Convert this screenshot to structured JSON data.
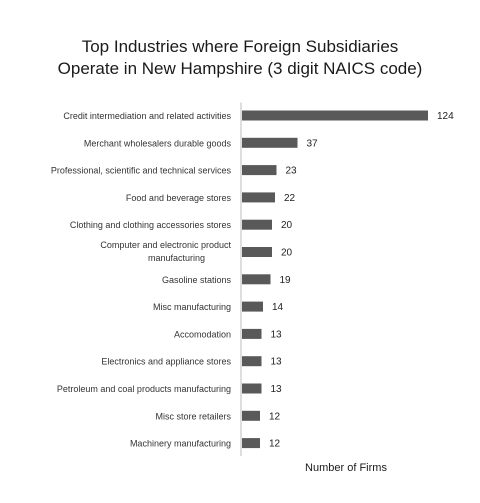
{
  "chart_data": {
    "type": "bar",
    "orientation": "horizontal",
    "title_lines": [
      "Top Industries where Foreign Subsidiaries",
      "Operate in New Hampshire  (3 digit NAICS code)"
    ],
    "xlabel": "Number of Firms",
    "ylabel": "",
    "categories": [
      "Credit intermediation and related activities",
      "Merchant wholesalers durable goods",
      "Professional, scientific and technical services",
      "Food and beverage stores",
      "Clothing and clothing accessories stores",
      "Computer and electronic product manufacturing",
      "Gasoline stations",
      "Misc manufacturing",
      "Accomodation",
      "Electronics and appliance stores",
      "Petroleum and coal products manufacturing",
      "Misc store retailers",
      "Machinery manufacturing"
    ],
    "values": [
      124,
      37,
      23,
      22,
      20,
      20,
      19,
      14,
      13,
      13,
      13,
      12,
      12
    ],
    "bar_color": "#595959",
    "data_labels": true,
    "grid": false,
    "legend": "none"
  }
}
